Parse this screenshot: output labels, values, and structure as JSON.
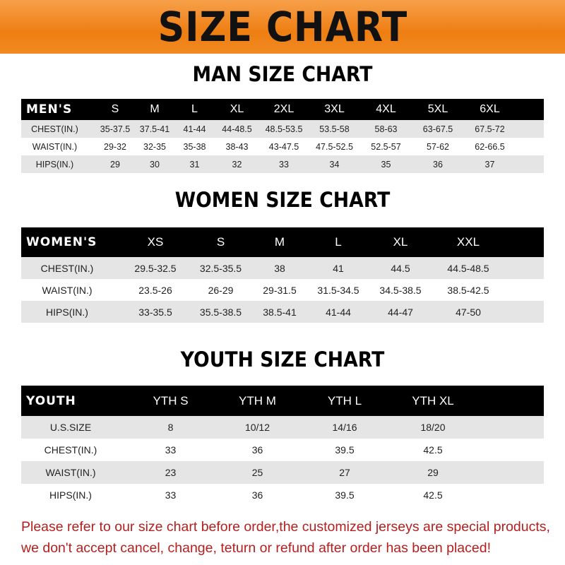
{
  "title": "SIZE CHART",
  "colors": {
    "banner": "#ee7e12",
    "header_row": "#000000",
    "stripe": "#e5e5e5",
    "note": "#b3201f"
  },
  "men": {
    "title": "MAN SIZE CHART",
    "header": [
      "MEN'S",
      "S",
      "M",
      "L",
      "XL",
      "2XL",
      "3XL",
      "4XL",
      "5XL",
      "6XL"
    ],
    "rows": [
      [
        "CHEST(IN.)",
        "35-37.5",
        "37.5-41",
        "41-44",
        "44-48.5",
        "48.5-53.5",
        "53.5-58",
        "58-63",
        "63-67.5",
        "67.5-72"
      ],
      [
        "WAIST(IN.)",
        "29-32",
        "32-35",
        "35-38",
        "38-43",
        "43-47.5",
        "47.5-52.5",
        "52.5-57",
        "57-62",
        "62-66.5"
      ],
      [
        "HIPS(IN.)",
        "29",
        "30",
        "31",
        "32",
        "33",
        "34",
        "35",
        "36",
        "37"
      ]
    ]
  },
  "women": {
    "title": "WOMEN SIZE CHART",
    "header": [
      "WOMEN'S",
      "XS",
      "S",
      "M",
      "L",
      "XL",
      "XXL"
    ],
    "rows": [
      [
        "CHEST(IN.)",
        "29.5-32.5",
        "32.5-35.5",
        "38",
        "41",
        "44.5",
        "44.5-48.5"
      ],
      [
        "WAIST(IN.)",
        "23.5-26",
        "26-29",
        "29-31.5",
        "31.5-34.5",
        "34.5-38.5",
        "38.5-42.5"
      ],
      [
        "HIPS(IN.)",
        "33-35.5",
        "35.5-38.5",
        "38.5-41",
        "41-44",
        "44-47",
        "47-50"
      ]
    ]
  },
  "youth": {
    "title": "YOUTH SIZE CHART",
    "header": [
      "YOUTH",
      "YTH S",
      "YTH M",
      "YTH L",
      "YTH XL"
    ],
    "rows": [
      [
        "U.S.SIZE",
        "8",
        "10/12",
        "14/16",
        "18/20"
      ],
      [
        "CHEST(IN.)",
        "33",
        "36",
        "39.5",
        "42.5"
      ],
      [
        "WAIST(IN.)",
        "23",
        "25",
        "27",
        "29"
      ],
      [
        "HIPS(IN.)",
        "33",
        "36",
        "39.5",
        "42.5"
      ]
    ]
  },
  "note": [
    "Please refer to our size chart before order,the customized jerseys are special products,",
    "we don't accept cancel, change, teturn or refund after order has been placed!"
  ]
}
